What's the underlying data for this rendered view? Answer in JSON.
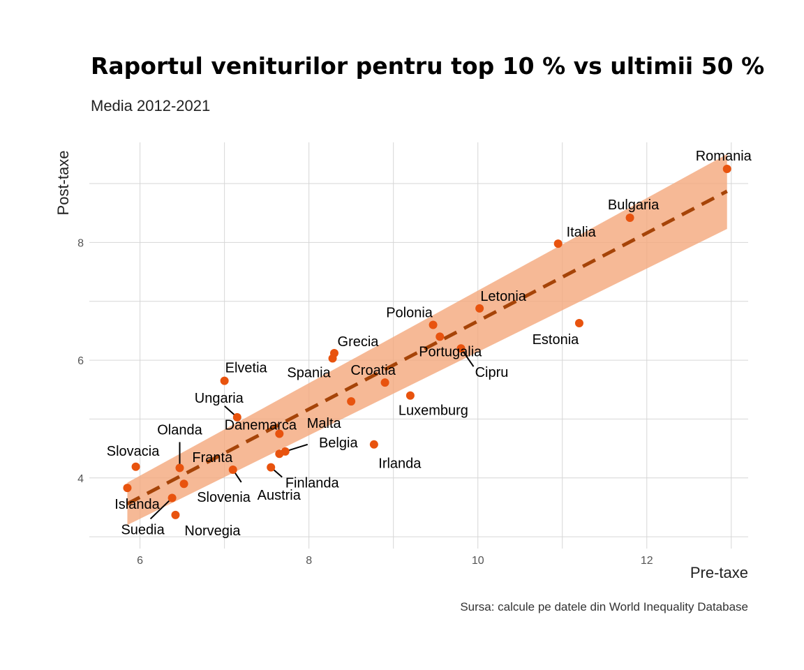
{
  "chart_data": {
    "type": "scatter",
    "title": "Raportul veniturilor pentru top 10 % vs ultimii 50 %",
    "subtitle": "Media 2012-2021",
    "xlabel": "Pre-taxe",
    "ylabel": "Post-taxe",
    "caption": "Sursa: calcule pe datele din World Inequality Database",
    "xlim": [
      5.4,
      13.2
    ],
    "ylim": [
      2.8,
      9.7
    ],
    "x_ticks": [
      6,
      8,
      10,
      12
    ],
    "y_ticks": [
      4,
      6,
      8
    ],
    "grid": true,
    "colors": {
      "points": "#E8530E",
      "trend": "#A64408",
      "band": "#F4A87C"
    },
    "points": [
      {
        "label": "Romania",
        "x": 12.95,
        "y": 9.25
      },
      {
        "label": "Bulgaria",
        "x": 11.8,
        "y": 8.42
      },
      {
        "label": "Italia",
        "x": 10.95,
        "y": 7.98
      },
      {
        "label": "Estonia",
        "x": 11.2,
        "y": 6.63
      },
      {
        "label": "Letonia",
        "x": 10.02,
        "y": 6.88
      },
      {
        "label": "Polonia",
        "x": 9.47,
        "y": 6.6
      },
      {
        "label": "Portugalia",
        "x": 9.55,
        "y": 6.4
      },
      {
        "label": "Cipru",
        "x": 9.8,
        "y": 6.2
      },
      {
        "label": "Grecia",
        "x": 8.3,
        "y": 6.12
      },
      {
        "label": "Spania",
        "x": 8.28,
        "y": 6.03
      },
      {
        "label": "Croatia",
        "x": 8.9,
        "y": 5.62
      },
      {
        "label": "Luxemburg",
        "x": 9.2,
        "y": 5.4
      },
      {
        "label": "Malta",
        "x": 8.5,
        "y": 5.3
      },
      {
        "label": "Elvetia",
        "x": 7.0,
        "y": 5.65
      },
      {
        "label": "Ungaria",
        "x": 7.15,
        "y": 5.03
      },
      {
        "label": "Danemarca",
        "x": 7.65,
        "y": 4.75
      },
      {
        "label": "Irlanda",
        "x": 8.77,
        "y": 4.57
      },
      {
        "label": "Belgia",
        "x": 7.72,
        "y": 4.45
      },
      {
        "label": "Franta",
        "x": 7.65,
        "y": 4.41
      },
      {
        "label": "Finlanda",
        "x": 7.55,
        "y": 4.18
      },
      {
        "label": "Austria",
        "x": 7.1,
        "y": 4.14
      },
      {
        "label": "Olanda",
        "x": 6.47,
        "y": 4.17
      },
      {
        "label": "Slovacia",
        "x": 5.95,
        "y": 4.19
      },
      {
        "label": "Islanda",
        "x": 5.85,
        "y": 3.83
      },
      {
        "label": "Slovenia",
        "x": 6.52,
        "y": 3.9
      },
      {
        "label": "Suedia",
        "x": 6.38,
        "y": 3.66
      },
      {
        "label": "Norvegia",
        "x": 6.42,
        "y": 3.37
      }
    ],
    "trend": {
      "x_range": [
        5.85,
        12.95
      ],
      "fit": [
        3.56,
        8.87
      ],
      "band_lower": [
        3.2,
        8.23
      ],
      "band_upper": [
        3.92,
        9.5
      ]
    }
  }
}
